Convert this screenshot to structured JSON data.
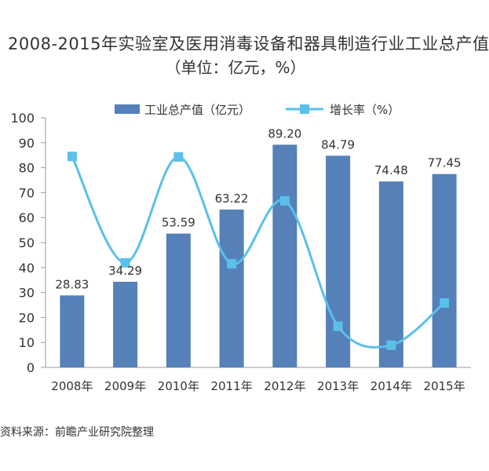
{
  "chart_data": {
    "type": "bar",
    "title": "2008-2015年实验室及医用消毒设备和器具制造行业工业总产值",
    "subtitle": "（单位：亿元，%）",
    "categories": [
      "2008年",
      "2009年",
      "2010年",
      "2011年",
      "2012年",
      "2013年",
      "2014年",
      "2015年"
    ],
    "series": [
      {
        "name": "工业总产值（亿元）",
        "type": "bar",
        "values": [
          28.83,
          34.29,
          53.59,
          63.22,
          89.2,
          84.79,
          74.48,
          77.45
        ],
        "value_labels": [
          "28.83",
          "34.29",
          "53.59",
          "63.22",
          "89.20",
          "84.79",
          "74.48",
          "77.45"
        ],
        "color": "#5580b8"
      },
      {
        "name": "增长率（%）",
        "type": "line",
        "smooth": true,
        "values": [
          84.5,
          41.9,
          84.3,
          41.5,
          66.7,
          16.5,
          8.9,
          25.8
        ],
        "color": "#5bc0eb"
      }
    ],
    "yticks": [
      "0",
      "10",
      "20",
      "30",
      "40",
      "50",
      "60",
      "70",
      "80",
      "90",
      "100"
    ],
    "ylim": [
      0,
      100
    ],
    "grid": false,
    "legend_position": "top"
  },
  "source": "资料来源：前瞻产业研究院整理"
}
